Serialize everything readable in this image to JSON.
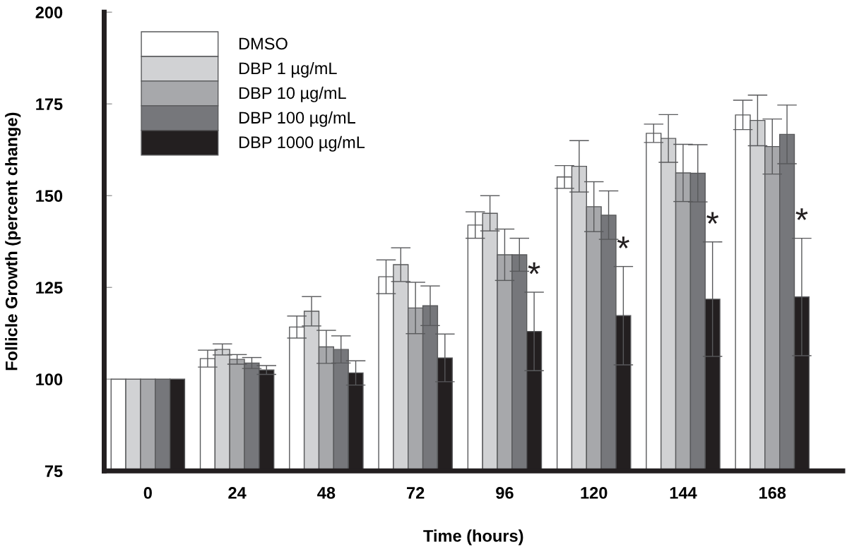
{
  "chart_data": {
    "type": "bar",
    "xlabel": "Time (hours)",
    "ylabel": "Follicle Growth (percent change)",
    "categories": [
      "0",
      "24",
      "48",
      "72",
      "96",
      "120",
      "144",
      "168"
    ],
    "ylim": [
      75,
      200
    ],
    "yticks": [
      75,
      100,
      125,
      150,
      175,
      200
    ],
    "grid": false,
    "legend": "top left",
    "series": [
      {
        "name": "DMSO",
        "color": "#ffffff",
        "values": [
          100,
          105.6,
          114.2,
          127.9,
          142,
          155.1,
          167,
          172
        ],
        "errors": [
          null,
          2.3,
          3,
          4.6,
          3.6,
          3.1,
          2.5,
          4
        ]
      },
      {
        "name": "DBP 1 µg/mL",
        "color": "#d1d2d4",
        "values": [
          100,
          108.1,
          118.5,
          131.2,
          145.2,
          158,
          165.6,
          170.5
        ],
        "errors": [
          null,
          1.5,
          4,
          4.6,
          4.8,
          7,
          6.5,
          6.9
        ]
      },
      {
        "name": "DBP 10 µg/mL",
        "color": "#a7a8ab",
        "values": [
          100,
          105.4,
          108.8,
          119.4,
          133.9,
          147,
          156.2,
          163.4
        ],
        "errors": [
          null,
          1.3,
          4.5,
          7,
          7,
          6.8,
          7.8,
          7.5
        ]
      },
      {
        "name": "DBP 100 µg/mL",
        "color": "#76777b",
        "values": [
          100,
          104.4,
          108.1,
          120,
          133.9,
          144.7,
          156.1,
          166.7
        ],
        "errors": [
          null,
          1.5,
          3.7,
          5.4,
          4.5,
          6.6,
          7.8,
          8
        ]
      },
      {
        "name": "DBP 1000 µg/mL",
        "color": "#231f20",
        "values": [
          100,
          102.5,
          101.7,
          105.8,
          113,
          117.3,
          121.8,
          122.4
        ],
        "errors": [
          null,
          1.2,
          3.3,
          6.5,
          10.7,
          13.4,
          15.6,
          16
        ]
      }
    ],
    "annotations": [
      "*",
      "*",
      "*",
      "*"
    ]
  }
}
